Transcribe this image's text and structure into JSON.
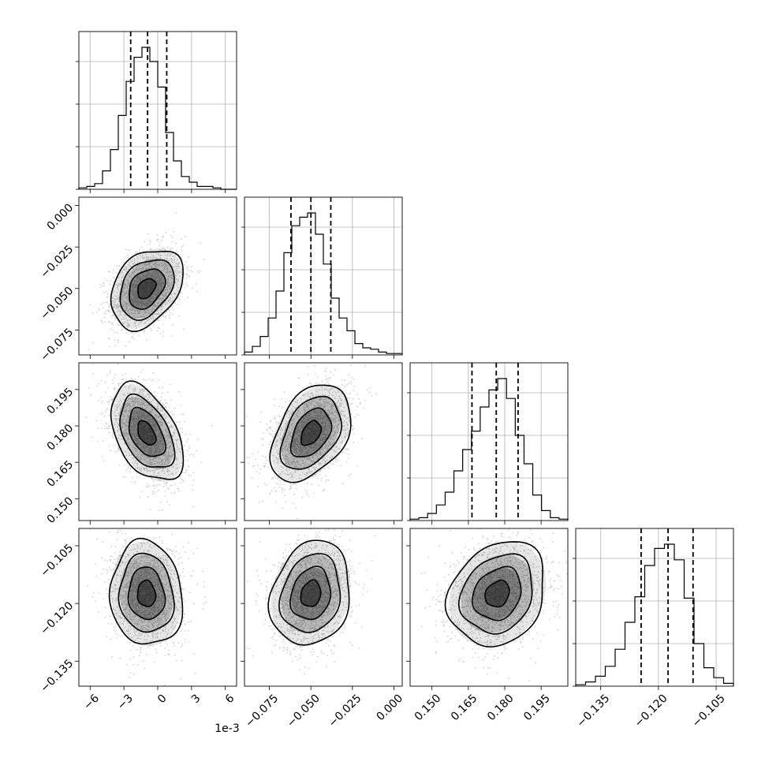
{
  "chart_data": {
    "type": "corner",
    "exponent_label": "1e-3",
    "parameters": [
      {
        "range": [
          -7,
          7
        ],
        "ticks": [
          -6,
          -3,
          0,
          3,
          6
        ],
        "tick_labels": [
          "−6",
          "−3",
          "0",
          "3",
          "6"
        ],
        "quantiles": [
          -2.4,
          -0.9,
          0.8
        ],
        "hist_counts": [
          1,
          2,
          4,
          13,
          28,
          52,
          76,
          93,
          100,
          90,
          72,
          40,
          20,
          9,
          5,
          2,
          2,
          1,
          0,
          0
        ]
      },
      {
        "range": [
          -0.09,
          0.005
        ],
        "ticks": [
          -0.075,
          -0.05,
          -0.025,
          0.0
        ],
        "tick_labels": [
          "−0.075",
          "−0.050",
          "−0.025",
          "0.000"
        ],
        "quantiles": [
          -0.062,
          -0.05,
          -0.038
        ],
        "hist_counts": [
          2,
          6,
          13,
          26,
          45,
          72,
          91,
          97,
          100,
          85,
          64,
          40,
          26,
          17,
          8,
          5,
          4,
          2,
          1,
          1
        ]
      },
      {
        "range": [
          0.141,
          0.206
        ],
        "ticks": [
          0.15,
          0.165,
          0.18,
          0.195
        ],
        "tick_labels": [
          "0.150",
          "0.165",
          "0.180",
          "0.195"
        ],
        "quantiles": [
          0.1665,
          0.1765,
          0.1855
        ],
        "hist_counts": [
          1,
          2,
          5,
          11,
          20,
          35,
          50,
          63,
          80,
          92,
          100,
          86,
          60,
          40,
          18,
          7,
          2,
          1
        ]
      },
      {
        "range": [
          -0.1415,
          -0.1005
        ],
        "ticks": [
          -0.135,
          -0.12,
          -0.105
        ],
        "tick_labels": [
          "−0.135",
          "−0.120",
          "−0.105"
        ],
        "quantiles": [
          -0.1245,
          -0.1175,
          -0.111
        ],
        "hist_counts": [
          1,
          3,
          7,
          14,
          26,
          45,
          63,
          85,
          97,
          100,
          89,
          62,
          30,
          13,
          6,
          2
        ]
      }
    ],
    "pairs": [
      {
        "x": 0,
        "y": 1,
        "mean": [
          -1.0,
          -0.05
        ],
        "cov": [
          [
            2.56,
            0.0064
          ],
          [
            0.0064,
            0.000144
          ]
        ]
      },
      {
        "x": 0,
        "y": 2,
        "mean": [
          -1.0,
          0.177
        ],
        "cov": [
          [
            2.56,
            -0.0072
          ],
          [
            -0.0072,
            0.0001
          ]
        ]
      },
      {
        "x": 1,
        "y": 2,
        "mean": [
          -0.05,
          0.177
        ],
        "cov": [
          [
            0.000144,
            4.8e-05
          ],
          [
            4.8e-05,
            0.0001
          ]
        ]
      },
      {
        "x": 0,
        "y": 3,
        "mean": [
          -1.0,
          -0.1175
        ],
        "cov": [
          [
            2.56,
            -0.0008
          ],
          [
            -0.0008,
            4.62e-05
          ]
        ]
      },
      {
        "x": 1,
        "y": 3,
        "mean": [
          -0.05,
          -0.1175
        ],
        "cov": [
          [
            0.000144,
            1.33e-05
          ],
          [
            1.33e-05,
            4.62e-05
          ]
        ]
      },
      {
        "x": 2,
        "y": 3,
        "mean": [
          0.177,
          -0.1175
        ],
        "cov": [
          [
            0.0001,
            1.36e-05
          ],
          [
            1.36e-05,
            4.62e-05
          ]
        ]
      }
    ],
    "contour_levels_sigma": [
      0.5,
      1.0,
      1.5,
      2.0
    ],
    "grid": true
  }
}
